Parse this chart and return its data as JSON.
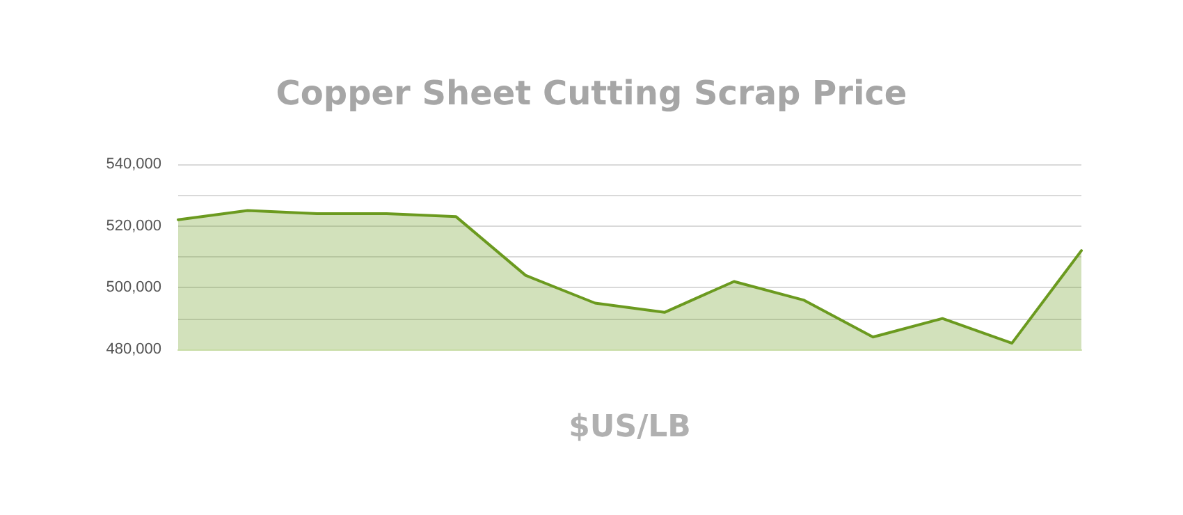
{
  "chart_data": {
    "type": "area",
    "title": "Copper Sheet Cutting Scrap Price",
    "xlabel": "$US/LB",
    "categories": [
      null,
      null,
      null,
      null,
      null,
      null,
      null,
      null,
      null,
      null,
      null,
      null,
      null,
      null
    ],
    "series": [
      {
        "color": "#6b9a1f",
        "values": [
          522000,
          525000,
          524000,
          524000,
          523000,
          504000,
          495000,
          492000,
          502000,
          496000,
          484000,
          490000,
          482000,
          512000
        ]
      }
    ],
    "ylim": [
      480000,
      540000
    ],
    "yticks": [
      {
        "value": 480000,
        "label": "480,000"
      },
      {
        "value": 490000,
        "label": null
      },
      {
        "value": 500000,
        "label": "500,000"
      },
      {
        "value": 510000,
        "label": null
      },
      {
        "value": 520000,
        "label": "520,000"
      },
      {
        "value": 530000,
        "label": null
      },
      {
        "value": 540000,
        "label": "540,000"
      }
    ],
    "grid": true
  }
}
